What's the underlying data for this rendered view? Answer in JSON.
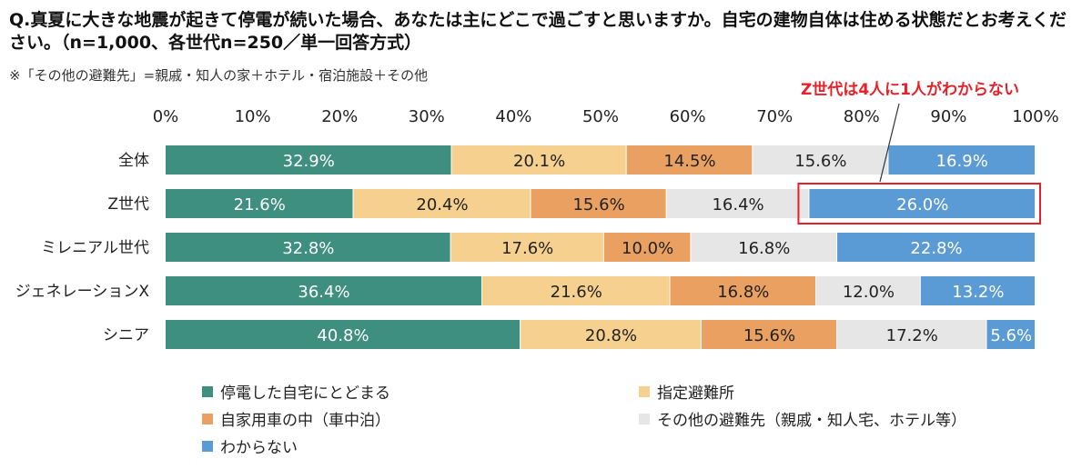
{
  "title": "Q.真夏に大きな地震が起きて停電が続いた場合、あなたは主にどこで過ごすと思いますか。自宅の建物自体は住める状態だとお考えください。（n=1,000、各世代n=250／単一回答方式）",
  "note": "※「その他の避難先」=親戚・知人の家＋ホテル・宿泊施設＋その他",
  "callout": "Z世代は4人に1人がわからない",
  "chart_data": {
    "type": "bar",
    "orientation": "horizontal",
    "stacked": true,
    "categories": [
      "全体",
      "Z世代",
      "ミレニアル世代",
      "ジェネレーションX",
      "シニア"
    ],
    "xlim": [
      0,
      100
    ],
    "x_ticks": [
      "0%",
      "10%",
      "20%",
      "30%",
      "40%",
      "50%",
      "60%",
      "70%",
      "80%",
      "90%",
      "100%"
    ],
    "x_axis_position": "top",
    "legend_position": "bottom",
    "highlight": {
      "category": "Z世代",
      "series": "わからない",
      "color": "#e8202a"
    },
    "series": [
      {
        "name": "停電した自宅にとどまる",
        "color": "#3e8f7f",
        "label_color": "#ffffff",
        "values": [
          32.9,
          21.6,
          32.8,
          36.4,
          40.8
        ]
      },
      {
        "name": "指定避難所",
        "color": "#f5d08e",
        "label_color": "#222222",
        "values": [
          20.1,
          20.4,
          17.6,
          21.6,
          20.8
        ]
      },
      {
        "name": "自家用車の中（車中泊）",
        "color": "#e9a060",
        "label_color": "#222222",
        "values": [
          14.5,
          15.6,
          10.0,
          16.8,
          15.6
        ]
      },
      {
        "name": "その他の避難先（親戚・知人宅、ホテル等）",
        "color": "#e7e6e6",
        "label_color": "#222222",
        "values": [
          15.6,
          16.4,
          16.8,
          12.0,
          17.2
        ]
      },
      {
        "name": "わからない",
        "color": "#5b9bd5",
        "label_color": "#ffffff",
        "values": [
          16.9,
          26.0,
          22.8,
          13.2,
          5.6
        ]
      }
    ]
  }
}
